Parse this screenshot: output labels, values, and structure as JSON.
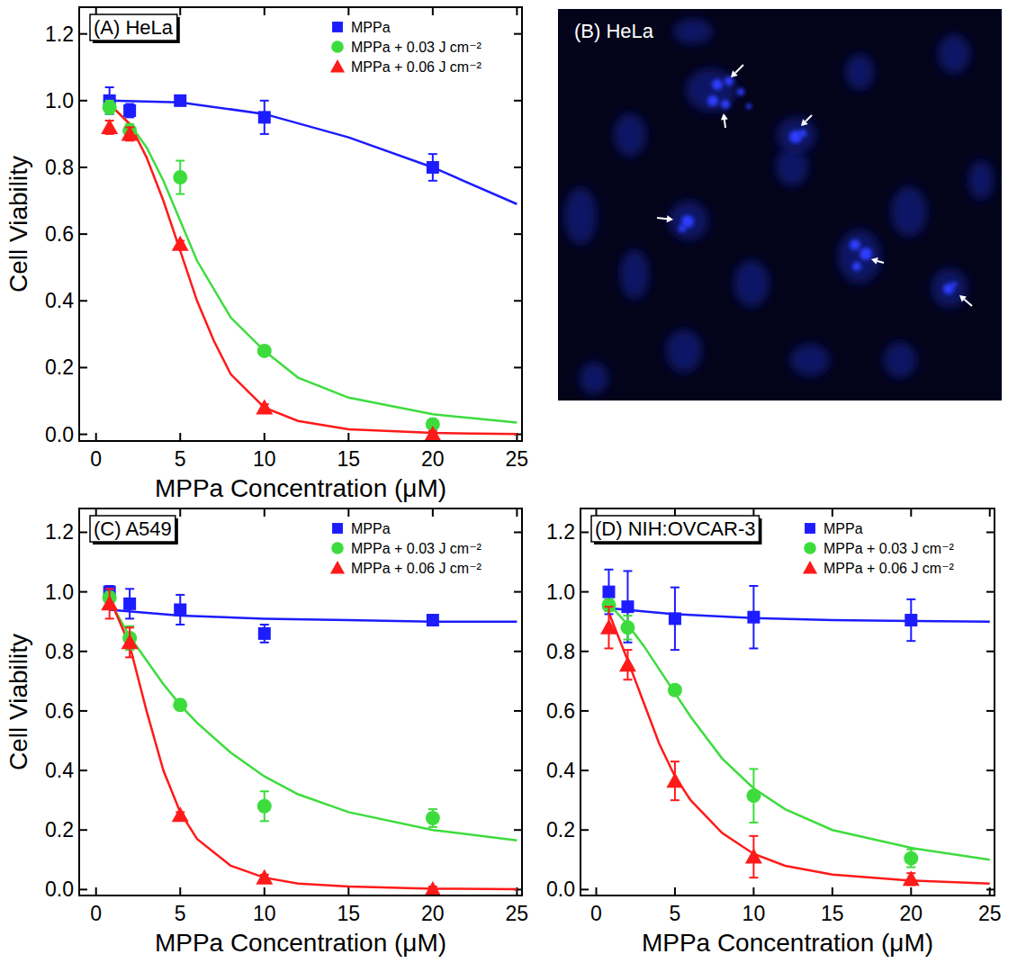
{
  "chart_data": [
    {
      "type": "scatter",
      "title": "(A) HeLa",
      "xlabel": "MPPa Concentration (μM)",
      "ylabel": "Cell Viability",
      "xlim": [
        -1,
        25.3
      ],
      "ylim": [
        -0.02,
        1.28
      ],
      "xticks": [
        0,
        5,
        10,
        15,
        20,
        25
      ],
      "yticks": [
        {
          "value": 0,
          "label": "0.0"
        },
        {
          "value": 0.2,
          "label": "0.2"
        },
        {
          "value": 0.4,
          "label": "0.4"
        },
        {
          "value": 0.6,
          "label": "0.6"
        },
        {
          "value": 0.8,
          "label": "0.8"
        },
        {
          "value": 1.0,
          "label": "1.0"
        },
        {
          "value": 1.2,
          "label": "1.2"
        }
      ],
      "legend": "upper right",
      "series": [
        {
          "name": "MPPa",
          "type": "scatter",
          "marker": "square",
          "color": "#1c1cff",
          "x": [
            0.8,
            2,
            5,
            10,
            20
          ],
          "values": [
            1.0,
            0.97,
            1.0,
            0.95,
            0.8
          ],
          "error": [
            0.04,
            0.02,
            0.01,
            0.05,
            0.04
          ]
        },
        {
          "name": "MPPa + 0.03 J cm⁻²",
          "type": "scatter",
          "marker": "circle",
          "color": "#3ddc3d",
          "x": [
            0.8,
            2,
            5,
            10,
            20
          ],
          "values": [
            0.98,
            0.91,
            0.77,
            0.25,
            0.03
          ],
          "error": [
            0.02,
            0.02,
            0.05,
            0.01,
            0.01
          ]
        },
        {
          "name": "MPPa + 0.06 J cm⁻²",
          "type": "scatter",
          "marker": "triangle",
          "color": "#ff1a1a",
          "x": [
            0.8,
            2,
            5,
            10,
            20
          ],
          "values": [
            0.92,
            0.9,
            0.57,
            0.08,
            0.0
          ],
          "error": [
            0.02,
            0.02,
            0.01,
            0.01,
            0.01
          ]
        },
        {
          "type": "line",
          "color": "#1c1cff",
          "x": [
            0.8,
            5,
            10,
            15,
            20,
            25
          ],
          "values": [
            1.0,
            0.995,
            0.96,
            0.89,
            0.8,
            0.69
          ]
        },
        {
          "type": "line",
          "color": "#3ddc3d",
          "x": [
            0.8,
            2,
            3,
            4,
            5,
            6,
            8,
            10,
            12,
            15,
            20,
            25
          ],
          "values": [
            0.99,
            0.93,
            0.86,
            0.76,
            0.64,
            0.52,
            0.35,
            0.25,
            0.17,
            0.11,
            0.06,
            0.035
          ]
        },
        {
          "type": "line",
          "color": "#ff1a1a",
          "x": [
            0.8,
            2,
            3,
            4,
            5,
            6,
            7,
            8,
            10,
            12,
            15,
            20,
            25
          ],
          "values": [
            0.99,
            0.93,
            0.83,
            0.7,
            0.55,
            0.4,
            0.28,
            0.18,
            0.08,
            0.04,
            0.015,
            0.004,
            0.001
          ]
        }
      ]
    },
    {
      "type": "image",
      "title": "(B) HeLa"
    },
    {
      "type": "scatter",
      "title": "(C) A549",
      "xlabel": "MPPa Concentration (μM)",
      "ylabel": "Cell Viability",
      "xlim": [
        -1,
        25.3
      ],
      "ylim": [
        -0.02,
        1.28
      ],
      "xticks": [
        0,
        5,
        10,
        15,
        20,
        25
      ],
      "yticks": [
        {
          "value": 0,
          "label": "0.0"
        },
        {
          "value": 0.2,
          "label": "0.2"
        },
        {
          "value": 0.4,
          "label": "0.4"
        },
        {
          "value": 0.6,
          "label": "0.6"
        },
        {
          "value": 0.8,
          "label": "0.8"
        },
        {
          "value": 1.0,
          "label": "1.0"
        },
        {
          "value": 1.2,
          "label": "1.2"
        }
      ],
      "legend": "upper right",
      "series": [
        {
          "name": "MPPa",
          "type": "scatter",
          "marker": "square",
          "color": "#1c1cff",
          "x": [
            0.8,
            2,
            5,
            10,
            20
          ],
          "values": [
            1.0,
            0.96,
            0.94,
            0.86,
            0.905
          ],
          "error": [
            0.02,
            0.05,
            0.05,
            0.03,
            0.01
          ]
        },
        {
          "name": "MPPa + 0.03 J cm⁻²",
          "type": "scatter",
          "marker": "circle",
          "color": "#3ddc3d",
          "x": [
            0.8,
            2,
            5,
            10,
            20
          ],
          "values": [
            0.98,
            0.845,
            0.62,
            0.28,
            0.24
          ],
          "error": [
            0.02,
            0.04,
            0.01,
            0.05,
            0.03
          ]
        },
        {
          "name": "MPPa + 0.06 J cm⁻²",
          "type": "scatter",
          "marker": "triangle",
          "color": "#ff1a1a",
          "x": [
            0.8,
            2,
            5,
            10,
            20
          ],
          "values": [
            0.96,
            0.83,
            0.25,
            0.04,
            0.0
          ],
          "error": [
            0.05,
            0.05,
            0.01,
            0.01,
            0.01
          ]
        },
        {
          "type": "line",
          "color": "#1c1cff",
          "x": [
            0.8,
            5,
            10,
            15,
            20,
            25
          ],
          "values": [
            0.94,
            0.92,
            0.91,
            0.905,
            0.9,
            0.9
          ]
        },
        {
          "type": "line",
          "color": "#3ddc3d",
          "x": [
            0.8,
            2,
            3,
            4,
            5,
            6,
            8,
            10,
            12,
            15,
            20,
            25
          ],
          "values": [
            0.97,
            0.85,
            0.77,
            0.69,
            0.62,
            0.56,
            0.46,
            0.38,
            0.32,
            0.26,
            0.2,
            0.165
          ]
        },
        {
          "type": "line",
          "color": "#ff1a1a",
          "x": [
            0.8,
            2,
            3,
            4,
            5,
            6,
            8,
            10,
            12,
            15,
            20,
            25
          ],
          "values": [
            0.98,
            0.82,
            0.6,
            0.4,
            0.26,
            0.17,
            0.08,
            0.04,
            0.02,
            0.01,
            0.003,
            0.001
          ]
        }
      ]
    },
    {
      "type": "scatter",
      "title": "(D) NIH:OVCAR-3",
      "xlabel": "MPPa Concentration (μM)",
      "xlim": [
        -1,
        25.3
      ],
      "ylim": [
        -0.02,
        1.28
      ],
      "xticks": [
        0,
        5,
        10,
        15,
        20,
        25
      ],
      "yticks": [
        {
          "value": 0,
          "label": "0.0"
        },
        {
          "value": 0.2,
          "label": "0.2"
        },
        {
          "value": 0.4,
          "label": "0.4"
        },
        {
          "value": 0.6,
          "label": "0.6"
        },
        {
          "value": 0.8,
          "label": "0.8"
        },
        {
          "value": 1.0,
          "label": "1.0"
        },
        {
          "value": 1.2,
          "label": "1.2"
        }
      ],
      "legend": "upper right",
      "series": [
        {
          "name": "MPPa",
          "type": "scatter",
          "marker": "square",
          "color": "#1c1cff",
          "x": [
            0.8,
            2,
            5,
            10,
            20
          ],
          "values": [
            1.0,
            0.95,
            0.91,
            0.915,
            0.905
          ],
          "error": [
            0.075,
            0.12,
            0.105,
            0.105,
            0.07
          ]
        },
        {
          "name": "MPPa + 0.03 J cm⁻²",
          "type": "scatter",
          "marker": "circle",
          "color": "#3ddc3d",
          "x": [
            0.8,
            2,
            5,
            10,
            20
          ],
          "values": [
            0.955,
            0.88,
            0.67,
            0.315,
            0.105
          ],
          "error": [
            0.02,
            0.04,
            0.01,
            0.09,
            0.03
          ]
        },
        {
          "name": "MPPa + 0.06 J cm⁻²",
          "type": "scatter",
          "marker": "triangle",
          "color": "#ff1a1a",
          "x": [
            0.8,
            2,
            5,
            10,
            20
          ],
          "values": [
            0.88,
            0.755,
            0.365,
            0.11,
            0.035
          ],
          "error": [
            0.07,
            0.05,
            0.065,
            0.07,
            0.02
          ]
        },
        {
          "type": "line",
          "color": "#1c1cff",
          "x": [
            0.8,
            5,
            10,
            15,
            20,
            25
          ],
          "values": [
            0.945,
            0.925,
            0.912,
            0.905,
            0.902,
            0.9
          ]
        },
        {
          "type": "line",
          "color": "#3ddc3d",
          "x": [
            0.8,
            2,
            3,
            4,
            5,
            6,
            8,
            10,
            12,
            15,
            20,
            25
          ],
          "values": [
            0.96,
            0.89,
            0.82,
            0.74,
            0.66,
            0.58,
            0.44,
            0.34,
            0.27,
            0.2,
            0.14,
            0.1
          ]
        },
        {
          "type": "line",
          "color": "#ff1a1a",
          "x": [
            0.8,
            2,
            3,
            4,
            5,
            6,
            8,
            10,
            12,
            15,
            20,
            25
          ],
          "values": [
            0.93,
            0.77,
            0.63,
            0.49,
            0.38,
            0.3,
            0.19,
            0.12,
            0.08,
            0.05,
            0.03,
            0.02
          ]
        }
      ]
    }
  ]
}
